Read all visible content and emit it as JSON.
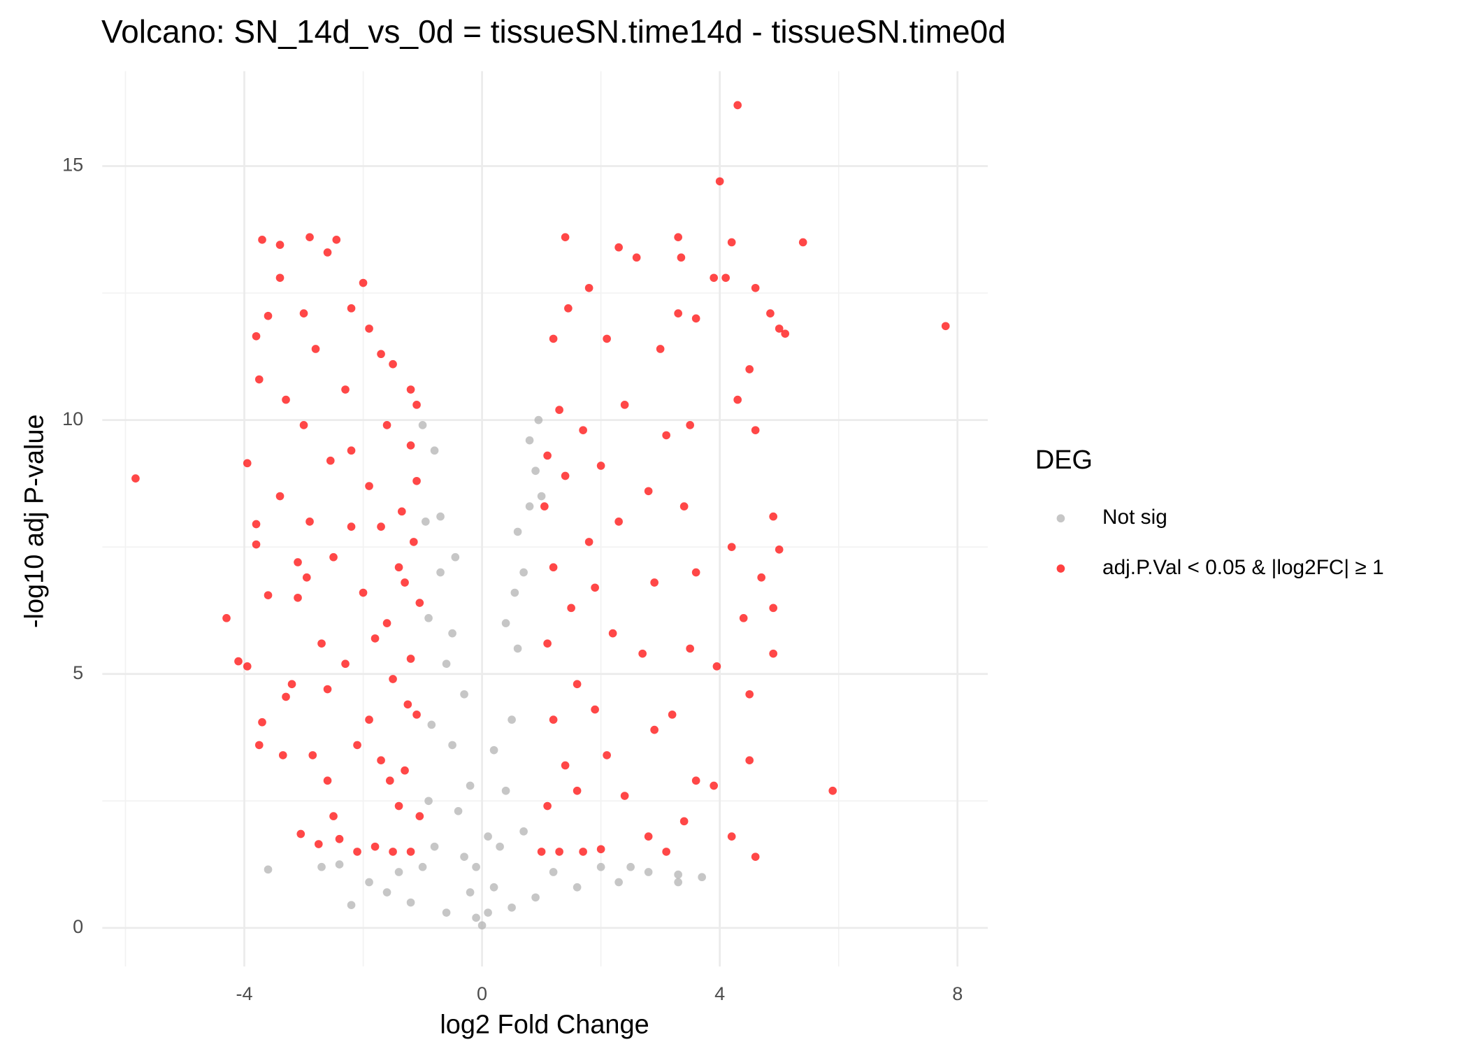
{
  "chart_data": {
    "type": "scatter",
    "title": "Volcano: SN_14d_vs_0d = tissueSN.time14d - tissueSN.time0d",
    "x_label": "log2 Fold Change",
    "y_label": "-log10 adj P-value",
    "legend_title": "DEG",
    "legend": "right",
    "grid": true,
    "xlim": [
      -6.39,
      8.51
    ],
    "ylim": [
      -0.76,
      16.87
    ],
    "xticks": [
      -4,
      0,
      4,
      8
    ],
    "yticks": [
      0,
      5,
      10,
      15
    ],
    "x_minor_grid": [
      -6,
      -2,
      2,
      6
    ],
    "y_minor_grid": [
      2.5,
      7.5,
      12.5
    ],
    "series": [
      {
        "name": "Not sig",
        "color": "#b3b3b3",
        "x": [
          -3.6,
          -2.7,
          -2.2,
          -1.9,
          -1.6,
          -1.2,
          -1.0,
          -0.9,
          -0.85,
          -0.9,
          -0.95,
          -1.0,
          -0.8,
          -0.7,
          -0.6,
          -0.5,
          -0.4,
          -0.3,
          -0.2,
          -0.1,
          0.0,
          0.1,
          0.2,
          0.3,
          0.4,
          0.5,
          0.6,
          0.7,
          0.8,
          0.9,
          0.8,
          0.95,
          1.0,
          0.6,
          0.4,
          0.2,
          -0.2,
          -0.5,
          -0.7,
          -0.3,
          0.1,
          -0.1,
          1.2,
          1.6,
          2.0,
          2.3,
          2.5,
          2.8,
          3.3,
          3.3,
          3.7,
          -2.4,
          -1.4,
          -0.6,
          0.5,
          0.9,
          -0.8,
          0.7,
          -0.45,
          0.55
        ],
        "values": [
          1.15,
          1.2,
          0.45,
          0.9,
          0.7,
          0.5,
          1.2,
          2.5,
          4.0,
          6.1,
          8.0,
          9.9,
          9.4,
          7.0,
          5.2,
          3.6,
          2.3,
          1.4,
          0.7,
          0.2,
          0.05,
          0.3,
          0.8,
          1.6,
          2.7,
          4.1,
          5.5,
          7.0,
          8.3,
          9.0,
          9.6,
          10.0,
          8.5,
          7.8,
          6.0,
          3.5,
          2.8,
          5.8,
          8.1,
          4.6,
          1.8,
          1.2,
          1.1,
          0.8,
          1.2,
          0.9,
          1.2,
          1.1,
          1.05,
          0.9,
          1.0,
          1.25,
          1.1,
          0.3,
          0.4,
          0.6,
          1.6,
          1.9,
          7.3,
          6.6
        ]
      },
      {
        "name": "adj.P.Val < 0.05 & |log2FC| ≥ 1",
        "color": "#ff0000",
        "x": [
          -5.83,
          -4.3,
          -4.1,
          -3.95,
          -3.7,
          -3.4,
          -3.4,
          -3.8,
          -3.6,
          -3.75,
          -3.95,
          -3.8,
          -3.8,
          -3.6,
          -3.7,
          -3.75,
          -3.35,
          -3.3,
          -3.2,
          -3.1,
          -3.1,
          -2.9,
          -2.6,
          -2.45,
          -3.0,
          -2.8,
          -3.3,
          -3.0,
          -3.4,
          -2.9,
          -2.95,
          -3.05,
          -2.75,
          -2.85,
          -2.6,
          -2.5,
          -2.4,
          -2.6,
          -2.7,
          -2.5,
          -2.55,
          -2.3,
          -2.2,
          -2.0,
          -1.9,
          -1.7,
          -1.5,
          -1.2,
          -1.1,
          -1.2,
          -1.1,
          -1.15,
          -1.05,
          -1.2,
          -1.1,
          -1.3,
          -1.05,
          -1.2,
          -1.5,
          -1.8,
          -2.1,
          -1.4,
          -1.7,
          -1.9,
          -1.5,
          -1.8,
          -2.0,
          -1.4,
          -1.7,
          -1.9,
          -2.2,
          -1.6,
          -1.35,
          -2.1,
          -2.3,
          -2.2,
          -1.6,
          -1.3,
          -1.25,
          -1.55,
          1.0,
          1.3,
          1.7,
          2.0,
          1.1,
          1.4,
          1.2,
          1.6,
          1.1,
          1.5,
          1.2,
          1.8,
          1.05,
          1.4,
          1.1,
          1.7,
          1.3,
          1.2,
          1.45,
          1.8,
          1.4,
          2.3,
          2.6,
          2.1,
          2.4,
          2.0,
          2.3,
          1.9,
          2.2,
          1.9,
          2.1,
          1.6,
          2.4,
          2.8,
          2.9,
          2.7,
          2.9,
          2.8,
          3.1,
          3.0,
          3.3,
          3.3,
          3.35,
          3.6,
          3.9,
          3.5,
          3.4,
          3.6,
          3.5,
          3.2,
          3.4,
          3.1,
          3.6,
          3.9,
          3.95,
          4.2,
          4.3,
          4.5,
          4.6,
          4.2,
          4.0,
          4.3,
          4.85,
          5.0,
          5.1,
          5.4,
          4.9,
          5.0,
          4.7,
          4.9,
          4.9,
          4.5,
          4.4,
          4.5,
          4.2,
          4.6,
          4.6,
          5.9,
          7.8,
          4.1
        ],
        "values": [
          8.85,
          6.1,
          5.25,
          5.15,
          13.55,
          13.45,
          12.8,
          11.65,
          12.05,
          10.8,
          9.15,
          7.95,
          7.55,
          6.55,
          4.05,
          3.6,
          3.4,
          4.55,
          4.8,
          6.5,
          7.2,
          13.6,
          13.3,
          13.55,
          12.1,
          11.4,
          10.4,
          9.9,
          8.5,
          8.0,
          6.9,
          1.85,
          1.65,
          3.4,
          2.9,
          2.2,
          1.75,
          4.7,
          5.6,
          7.3,
          9.2,
          10.6,
          12.2,
          12.7,
          11.8,
          11.3,
          11.1,
          10.6,
          10.3,
          9.5,
          8.8,
          7.6,
          6.4,
          5.3,
          4.2,
          3.1,
          2.2,
          1.5,
          1.5,
          1.6,
          1.5,
          2.4,
          3.3,
          4.1,
          4.9,
          5.7,
          6.6,
          7.1,
          7.9,
          8.7,
          9.4,
          9.9,
          8.2,
          3.6,
          5.2,
          7.9,
          6.0,
          6.8,
          4.4,
          2.9,
          1.5,
          1.5,
          1.5,
          1.55,
          2.4,
          3.2,
          4.1,
          4.8,
          5.6,
          6.3,
          7.1,
          7.6,
          8.3,
          8.9,
          9.3,
          9.8,
          10.2,
          11.6,
          12.2,
          12.6,
          13.6,
          13.4,
          13.2,
          11.6,
          10.3,
          9.1,
          8.0,
          6.7,
          5.8,
          4.3,
          3.4,
          2.7,
          2.6,
          1.8,
          3.9,
          5.4,
          6.8,
          8.6,
          9.7,
          11.4,
          12.1,
          13.6,
          13.2,
          12.0,
          12.8,
          9.9,
          8.3,
          7.0,
          5.5,
          4.2,
          2.1,
          1.5,
          2.9,
          2.8,
          5.15,
          7.5,
          10.4,
          11.0,
          12.6,
          13.5,
          14.7,
          16.2,
          12.1,
          11.8,
          11.7,
          13.5,
          8.1,
          7.45,
          6.9,
          6.3,
          5.4,
          4.6,
          6.1,
          3.3,
          1.8,
          1.4,
          9.8,
          2.7,
          11.85,
          12.8
        ]
      }
    ]
  }
}
